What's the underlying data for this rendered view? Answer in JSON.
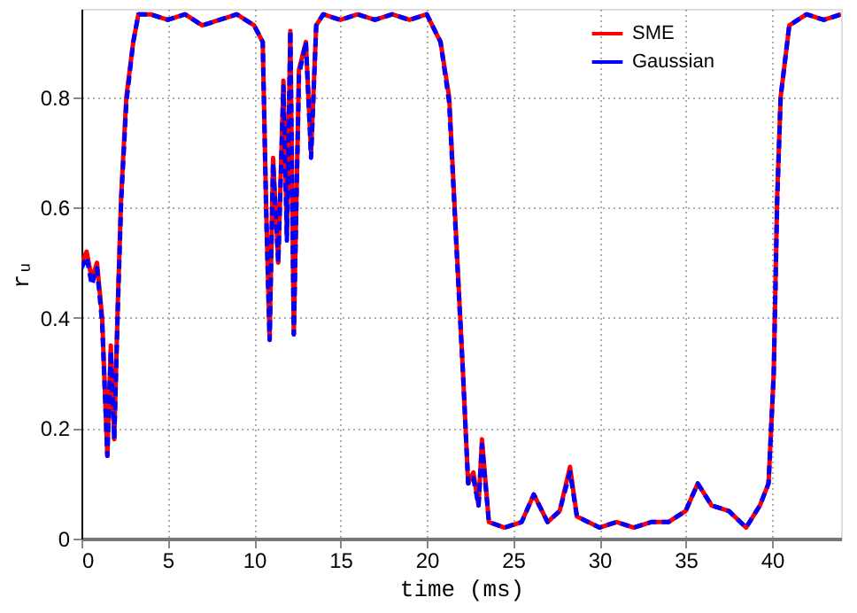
{
  "chart_data": {
    "type": "line",
    "xlabel": "time (ms)",
    "ylabel": "rᵤ",
    "xlim": [
      0,
      44
    ],
    "ylim": [
      0,
      0.96
    ],
    "xticks": [
      0,
      5,
      10,
      15,
      20,
      25,
      30,
      35,
      40
    ],
    "yticks": [
      0,
      0.2,
      0.4,
      0.6,
      0.8
    ],
    "grid": true,
    "legend": "top right",
    "marker": "none",
    "series": [
      {
        "name": "SME",
        "color": "#ff0000",
        "line_style": "solid",
        "x": [
          0,
          0.3,
          0.6,
          0.9,
          1.2,
          1.5,
          1.7,
          1.9,
          2.1,
          2.3,
          2.6,
          3.0,
          3.3,
          4,
          5,
          6,
          7,
          8,
          9,
          10,
          10.5,
          10.7,
          10.9,
          11.1,
          11.4,
          11.7,
          11.9,
          12.1,
          12.3,
          12.6,
          13,
          13.3,
          13.6,
          14,
          15,
          16,
          17,
          18,
          19,
          20,
          20.8,
          21.3,
          21.7,
          22.1,
          22.4,
          22.7,
          23,
          23.2,
          23.6,
          24.5,
          25.5,
          26.2,
          27,
          27.7,
          28.3,
          28.7,
          30,
          31,
          32,
          33,
          34,
          35,
          35.7,
          36.5,
          37.5,
          38.5,
          39.3,
          39.8,
          40.1,
          40.3,
          40.5,
          41,
          42,
          43,
          44
        ],
        "values": [
          0.5,
          0.52,
          0.47,
          0.5,
          0.4,
          0.15,
          0.35,
          0.18,
          0.42,
          0.62,
          0.8,
          0.9,
          0.95,
          0.95,
          0.94,
          0.95,
          0.93,
          0.94,
          0.95,
          0.93,
          0.9,
          0.6,
          0.36,
          0.69,
          0.5,
          0.83,
          0.55,
          0.92,
          0.37,
          0.85,
          0.9,
          0.7,
          0.93,
          0.95,
          0.94,
          0.95,
          0.94,
          0.95,
          0.94,
          0.95,
          0.9,
          0.8,
          0.55,
          0.3,
          0.1,
          0.12,
          0.06,
          0.18,
          0.03,
          0.02,
          0.03,
          0.08,
          0.03,
          0.05,
          0.13,
          0.04,
          0.02,
          0.03,
          0.02,
          0.03,
          0.03,
          0.05,
          0.1,
          0.06,
          0.05,
          0.02,
          0.06,
          0.1,
          0.3,
          0.62,
          0.8,
          0.93,
          0.95,
          0.94,
          0.95
        ]
      },
      {
        "name": "Gaussian",
        "color": "#0000ff",
        "line_style": "dashed",
        "x": [
          0,
          0.3,
          0.6,
          0.9,
          1.2,
          1.5,
          1.7,
          1.9,
          2.1,
          2.3,
          2.6,
          3.0,
          3.3,
          4,
          5,
          6,
          7,
          8,
          9,
          10,
          10.5,
          10.7,
          10.9,
          11.1,
          11.4,
          11.7,
          11.9,
          12.1,
          12.3,
          12.6,
          13,
          13.3,
          13.6,
          14,
          15,
          16,
          17,
          18,
          19,
          20,
          20.8,
          21.3,
          21.7,
          22.1,
          22.4,
          22.7,
          23,
          23.2,
          23.6,
          24.5,
          25.5,
          26.2,
          27,
          27.7,
          28.3,
          28.7,
          30,
          31,
          32,
          33,
          34,
          35,
          35.7,
          36.5,
          37.5,
          38.5,
          39.3,
          39.8,
          40.1,
          40.3,
          40.5,
          41,
          42,
          43,
          44
        ],
        "values": [
          0.49,
          0.51,
          0.46,
          0.49,
          0.39,
          0.15,
          0.34,
          0.18,
          0.41,
          0.61,
          0.79,
          0.9,
          0.95,
          0.95,
          0.94,
          0.95,
          0.93,
          0.94,
          0.95,
          0.93,
          0.9,
          0.59,
          0.36,
          0.68,
          0.5,
          0.82,
          0.54,
          0.92,
          0.37,
          0.84,
          0.9,
          0.69,
          0.93,
          0.95,
          0.94,
          0.95,
          0.94,
          0.95,
          0.94,
          0.95,
          0.9,
          0.79,
          0.54,
          0.3,
          0.1,
          0.11,
          0.06,
          0.17,
          0.03,
          0.02,
          0.03,
          0.08,
          0.03,
          0.05,
          0.12,
          0.04,
          0.02,
          0.03,
          0.02,
          0.03,
          0.03,
          0.05,
          0.1,
          0.06,
          0.05,
          0.02,
          0.06,
          0.1,
          0.3,
          0.61,
          0.8,
          0.93,
          0.95,
          0.94,
          0.95
        ]
      }
    ]
  }
}
